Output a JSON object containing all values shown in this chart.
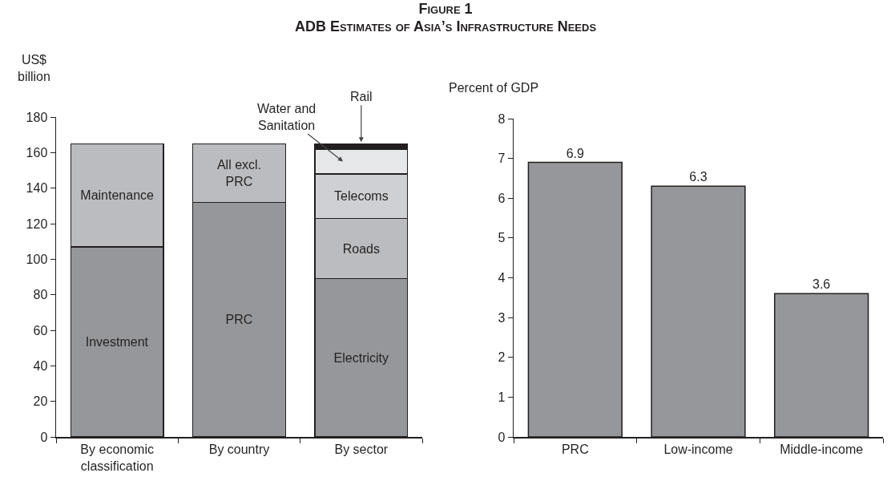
{
  "chart_data": [
    {
      "type": "bar",
      "title": "Figure 1",
      "subtitle": "ADB Estimates of Asia’s Infrastructure Needs",
      "ylabel": "US$ billion",
      "stacked": true,
      "categories": [
        "By economic classification",
        "By country",
        "By sector"
      ],
      "ylim": [
        0,
        180
      ],
      "yticks": [
        0,
        20,
        40,
        60,
        80,
        100,
        120,
        140,
        160,
        180
      ],
      "series": [
        {
          "name": "Investment",
          "color": "#96979b",
          "values": [
            107,
            null,
            null
          ]
        },
        {
          "name": "PRC",
          "color": "#96979b",
          "values": [
            null,
            132,
            null
          ]
        },
        {
          "name": "Electricity",
          "color": "#96979b",
          "values": [
            null,
            null,
            89
          ]
        },
        {
          "name": "Maintenance",
          "color": "#bbbcc0",
          "values": [
            58,
            null,
            null
          ]
        },
        {
          "name": "All excl. PRC",
          "color": "#bbbcc0",
          "values": [
            null,
            33,
            null
          ]
        },
        {
          "name": "Roads",
          "color": "#bbbcc0",
          "values": [
            null,
            null,
            34
          ]
        },
        {
          "name": "Telecoms",
          "color": "#cfd0d3",
          "values": [
            null,
            null,
            25
          ]
        },
        {
          "name": "Water and Sanitation",
          "color": "#e6e7e9",
          "values": [
            null,
            null,
            14
          ]
        },
        {
          "name": "Rail",
          "color": "#231f20",
          "values": [
            null,
            null,
            3
          ]
        }
      ]
    },
    {
      "type": "bar",
      "ylabel": "Percent of GDP",
      "categories": [
        "PRC",
        "Low-income",
        "Middle-income"
      ],
      "values": [
        6.9,
        6.3,
        3.6
      ],
      "color": "#96979b",
      "data_labels": true,
      "ylim": [
        0,
        8
      ],
      "yticks": [
        0,
        1,
        2,
        3,
        4,
        5,
        6,
        7,
        8
      ]
    }
  ]
}
